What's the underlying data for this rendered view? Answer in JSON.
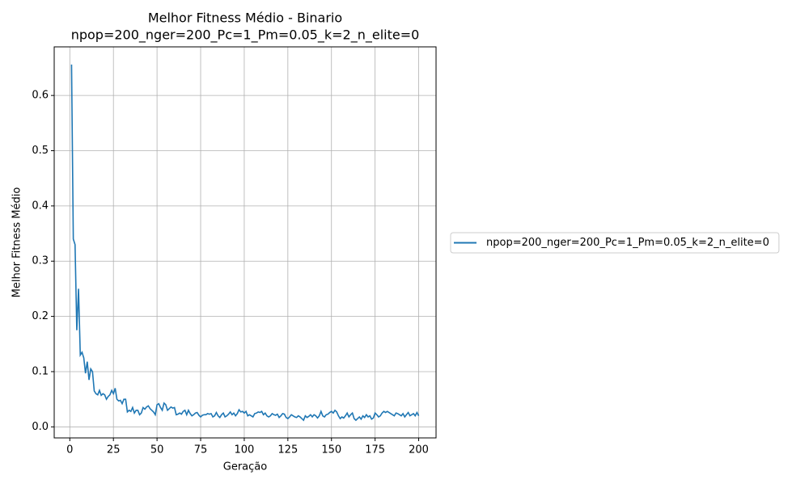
{
  "chart_data": {
    "type": "line",
    "title": "Melhor Fitness Médio - Binario",
    "subtitle": "npop=200_nger=200_Pc=1_Pm=0.05_k=2_n_elite=0",
    "xlabel": "Geração",
    "ylabel": "Melhor Fitness Médio",
    "x": [
      1,
      2,
      3,
      4,
      5,
      6,
      7,
      8,
      9,
      10,
      11,
      12,
      13,
      14,
      15,
      16,
      17,
      18,
      19,
      20,
      21,
      22,
      23,
      24,
      25,
      26,
      27,
      28,
      29,
      30,
      31,
      32,
      33,
      34,
      35,
      36,
      37,
      38,
      39,
      40,
      41,
      42,
      43,
      44,
      45,
      46,
      47,
      48,
      49,
      50,
      51,
      52,
      53,
      54,
      55,
      56,
      57,
      58,
      59,
      60,
      61,
      62,
      63,
      64,
      65,
      66,
      67,
      68,
      69,
      70,
      71,
      72,
      73,
      74,
      75,
      76,
      77,
      78,
      79,
      80,
      81,
      82,
      83,
      84,
      85,
      86,
      87,
      88,
      89,
      90,
      91,
      92,
      93,
      94,
      95,
      96,
      97,
      98,
      99,
      100,
      101,
      102,
      103,
      104,
      105,
      106,
      107,
      108,
      109,
      110,
      111,
      112,
      113,
      114,
      115,
      116,
      117,
      118,
      119,
      120,
      121,
      122,
      123,
      124,
      125,
      126,
      127,
      128,
      129,
      130,
      131,
      132,
      133,
      134,
      135,
      136,
      137,
      138,
      139,
      140,
      141,
      142,
      143,
      144,
      145,
      146,
      147,
      148,
      149,
      150,
      151,
      152,
      153,
      154,
      155,
      156,
      157,
      158,
      159,
      160,
      161,
      162,
      163,
      164,
      165,
      166,
      167,
      168,
      169,
      170,
      171,
      172,
      173,
      174,
      175,
      176,
      177,
      178,
      179,
      180,
      181,
      182,
      183,
      184,
      185,
      186,
      187,
      188,
      189,
      190,
      191,
      192,
      193,
      194,
      195,
      196,
      197,
      198,
      199,
      200
    ],
    "series": [
      {
        "name": "npop=200_nger=200_Pc=1_Pm=0.05_k=2_n_elite=0",
        "color": "#1f77b4",
        "values": [
          0.656,
          0.34,
          0.33,
          0.175,
          0.25,
          0.13,
          0.135,
          0.125,
          0.097,
          0.118,
          0.085,
          0.105,
          0.1,
          0.065,
          0.06,
          0.058,
          0.066,
          0.057,
          0.06,
          0.058,
          0.05,
          0.055,
          0.058,
          0.066,
          0.06,
          0.07,
          0.05,
          0.047,
          0.048,
          0.042,
          0.05,
          0.05,
          0.027,
          0.03,
          0.028,
          0.035,
          0.025,
          0.03,
          0.03,
          0.022,
          0.025,
          0.035,
          0.032,
          0.036,
          0.038,
          0.033,
          0.03,
          0.027,
          0.022,
          0.04,
          0.042,
          0.035,
          0.03,
          0.043,
          0.04,
          0.03,
          0.033,
          0.036,
          0.034,
          0.035,
          0.022,
          0.023,
          0.025,
          0.023,
          0.028,
          0.03,
          0.022,
          0.03,
          0.024,
          0.02,
          0.022,
          0.025,
          0.026,
          0.021,
          0.018,
          0.021,
          0.022,
          0.022,
          0.024,
          0.023,
          0.024,
          0.018,
          0.02,
          0.026,
          0.02,
          0.017,
          0.022,
          0.025,
          0.018,
          0.02,
          0.023,
          0.027,
          0.022,
          0.025,
          0.02,
          0.024,
          0.031,
          0.027,
          0.028,
          0.025,
          0.028,
          0.02,
          0.022,
          0.02,
          0.018,
          0.024,
          0.025,
          0.027,
          0.026,
          0.028,
          0.022,
          0.025,
          0.02,
          0.018,
          0.02,
          0.024,
          0.022,
          0.021,
          0.023,
          0.017,
          0.02,
          0.024,
          0.023,
          0.017,
          0.015,
          0.018,
          0.022,
          0.02,
          0.018,
          0.017,
          0.02,
          0.018,
          0.015,
          0.012,
          0.02,
          0.017,
          0.019,
          0.022,
          0.018,
          0.022,
          0.02,
          0.016,
          0.02,
          0.028,
          0.02,
          0.018,
          0.022,
          0.023,
          0.026,
          0.028,
          0.025,
          0.03,
          0.027,
          0.02,
          0.015,
          0.018,
          0.016,
          0.02,
          0.025,
          0.018,
          0.022,
          0.025,
          0.015,
          0.012,
          0.015,
          0.018,
          0.014,
          0.02,
          0.017,
          0.022,
          0.018,
          0.02,
          0.014,
          0.016,
          0.025,
          0.022,
          0.018,
          0.02,
          0.025,
          0.028,
          0.026,
          0.028,
          0.026,
          0.024,
          0.022,
          0.02,
          0.025,
          0.024,
          0.022,
          0.02,
          0.024,
          0.018,
          0.022,
          0.026,
          0.02,
          0.022,
          0.024,
          0.02,
          0.026,
          0.02
        ]
      }
    ],
    "xlim": [
      -8.95,
      209.95
    ],
    "ylim": [
      -0.02,
      0.688
    ],
    "xticks": [
      0,
      25,
      50,
      75,
      100,
      125,
      150,
      175,
      200
    ],
    "yticks": [
      {
        "value": 0,
        "label": "0.0"
      },
      0.1,
      0.2,
      0.3,
      0.4,
      0.5,
      0.6
    ],
    "grid": true,
    "legend": "right"
  }
}
